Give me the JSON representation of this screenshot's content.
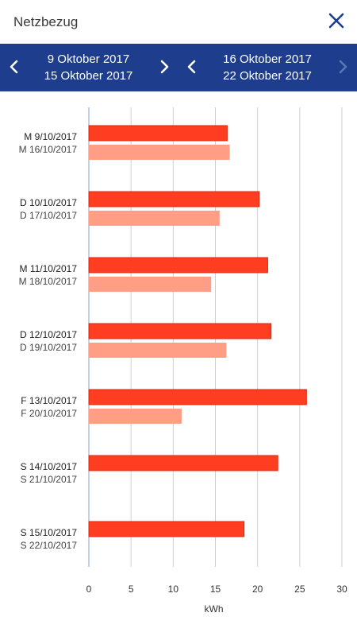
{
  "app": {
    "title": "Netzbezug"
  },
  "navigation": {
    "period_a": {
      "start": "9 Oktober 2017",
      "end": "15 Oktober 2017"
    },
    "period_b": {
      "start": "16 Oktober 2017",
      "end": "22 Oktober 2017"
    },
    "icons": {
      "prev_a": "chevron-left-icon",
      "next_a": "chevron-right-icon",
      "prev_b": "chevron-left-icon",
      "next_b": "chevron-right-icon-disabled",
      "close": "close-icon"
    }
  },
  "colors": {
    "header_background": "#1e3d8c",
    "close_icon": "#1e3d8c",
    "series_a": "#ff3d21",
    "series_a_border": "#d9260f",
    "series_b": "#ff9e85",
    "gridline": "#cfcfcf",
    "axis_line": "#8aa3cc",
    "disabled_arrow": "#5b76b3"
  },
  "chart_data": {
    "type": "bar",
    "orientation": "horizontal",
    "xlabel": "kWh",
    "ylabel": "",
    "xlim": [
      0,
      30
    ],
    "xticks": [
      0,
      5,
      10,
      15,
      20,
      25,
      30
    ],
    "grid": true,
    "legend": "none",
    "categories": [
      {
        "label_a": "M 9/10/2017",
        "label_b": "M 16/10/2017"
      },
      {
        "label_a": "D 10/10/2017",
        "label_b": "D 17/10/2017"
      },
      {
        "label_a": "M 11/10/2017",
        "label_b": "M 18/10/2017"
      },
      {
        "label_a": "D 12/10/2017",
        "label_b": "D 19/10/2017"
      },
      {
        "label_a": "F 13/10/2017",
        "label_b": "F 20/10/2017"
      },
      {
        "label_a": "S 14/10/2017",
        "label_b": "S 21/10/2017"
      },
      {
        "label_a": "S 15/10/2017",
        "label_b": "S 22/10/2017"
      }
    ],
    "series": [
      {
        "values": [
          16.4,
          20.2,
          21.2,
          21.6,
          25.8,
          22.4,
          18.4
        ]
      },
      {
        "values": [
          16.7,
          15.5,
          14.5,
          16.3,
          11.0,
          null,
          null
        ]
      }
    ]
  }
}
